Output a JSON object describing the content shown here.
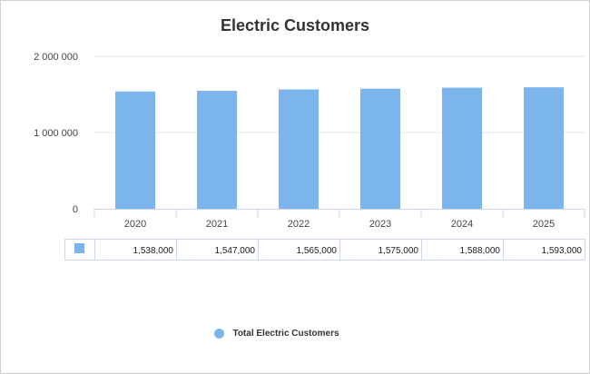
{
  "chart_data": {
    "type": "bar",
    "title": "Electric Customers",
    "categories": [
      "2020",
      "2021",
      "2022",
      "2023",
      "2024",
      "2025"
    ],
    "series": [
      {
        "name": "Total Electric Customers",
        "color": "#7cb5ec",
        "values": [
          1538000,
          1547000,
          1565000,
          1575000,
          1588000,
          1593000
        ]
      }
    ],
    "yticks": [
      "0",
      "1 000 000",
      "2 000 000"
    ],
    "ytick_values": [
      0,
      1000000,
      2000000
    ],
    "ylim": [
      0,
      2000000
    ],
    "grid": true,
    "data_table": {
      "cells": [
        "1,538,000",
        "1,547,000",
        "1,565,000",
        "1,575,000",
        "1,588,000",
        "1,593,000"
      ]
    },
    "legend": {
      "position": "bottom-center"
    }
  }
}
